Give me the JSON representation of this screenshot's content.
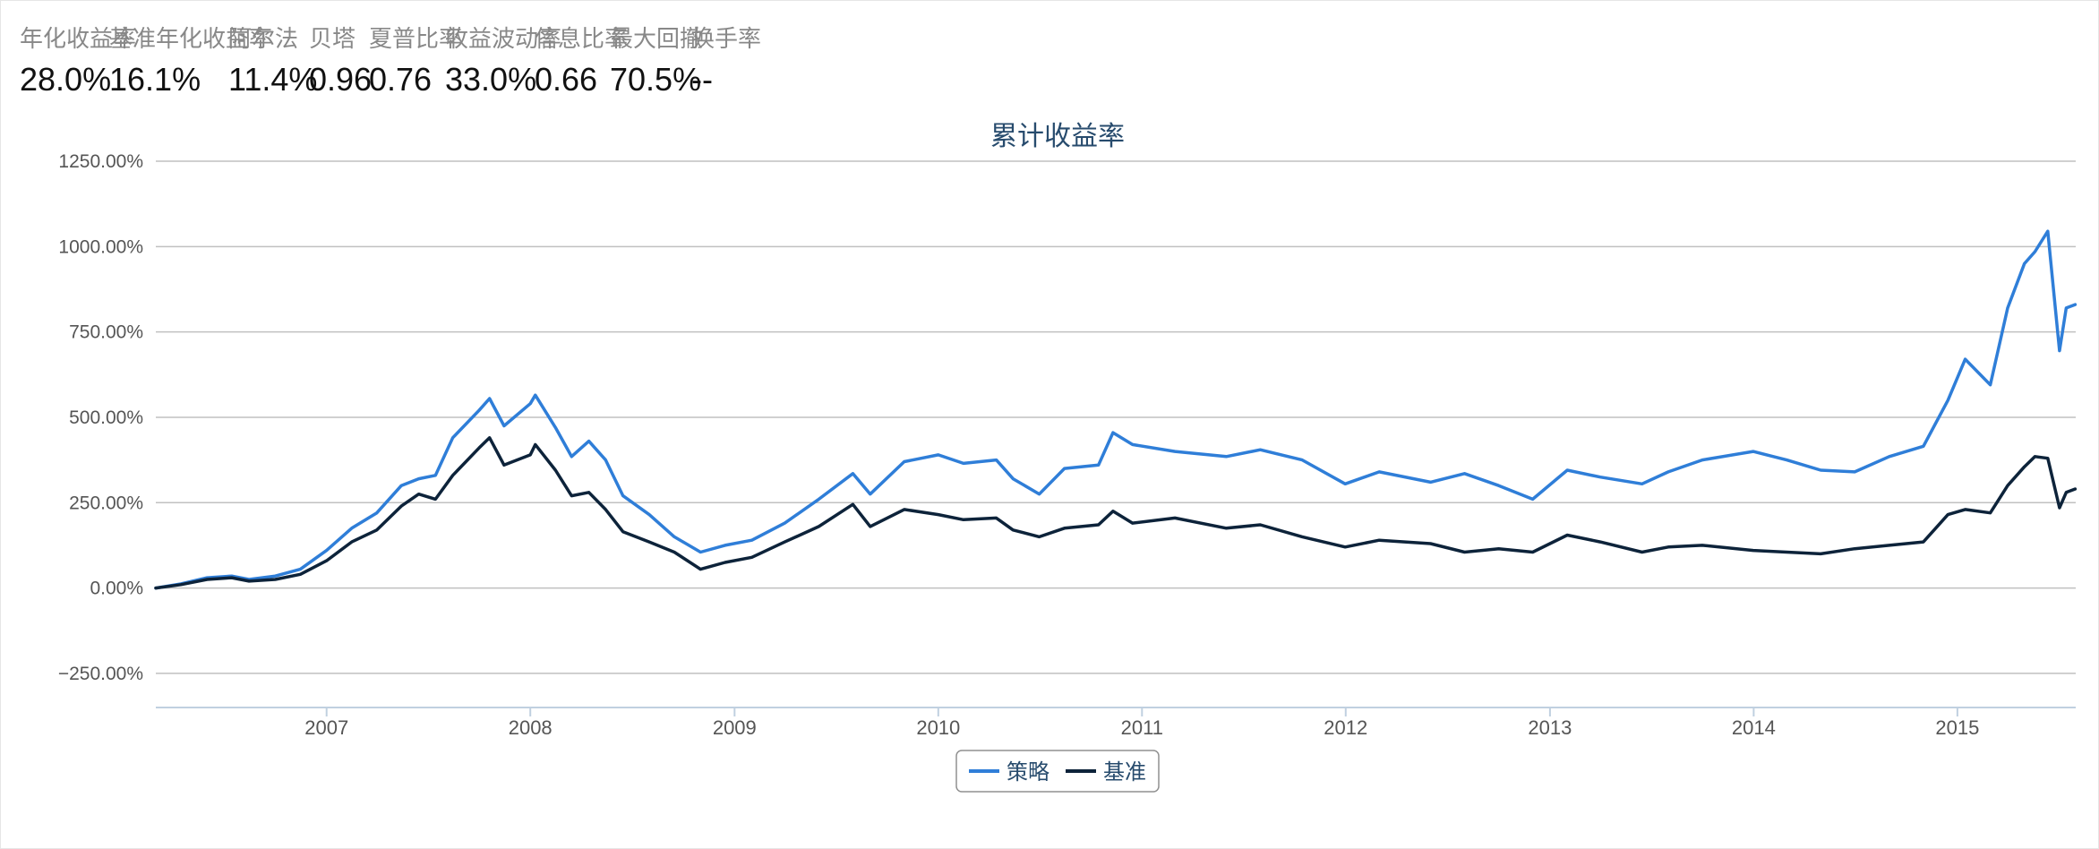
{
  "stats": [
    {
      "label": "年化收益率",
      "value": "28.0%"
    },
    {
      "label": "基准年化收益率",
      "value": "16.1%"
    },
    {
      "label": "阿尔法",
      "value": "11.4%"
    },
    {
      "label": "贝塔",
      "value": "0.96"
    },
    {
      "label": "夏普比率",
      "value": "0.76"
    },
    {
      "label": "收益波动率",
      "value": "33.0%"
    },
    {
      "label": "信息比率",
      "value": "0.66"
    },
    {
      "label": "最大回撤",
      "value": "70.5%"
    },
    {
      "label": "换手率",
      "value": "--"
    }
  ],
  "colors": {
    "strategy": "#2f7ed8",
    "benchmark": "#0d233a",
    "grid": "#c0c0c0",
    "title": "#274b6d"
  },
  "chart_data": {
    "type": "line",
    "title": "累计收益率",
    "xlabel": "",
    "ylabel": "",
    "ylim": [
      -350,
      1250
    ],
    "x_range": [
      "2006-03-01",
      "2015-08-01"
    ],
    "y_ticks": [
      -250,
      0,
      250,
      500,
      750,
      1000,
      1250
    ],
    "y_tick_labels": [
      "−250.00%",
      "0.00%",
      "250.00%",
      "500.00%",
      "750.00%",
      "1000.00%",
      "1250.00%"
    ],
    "x_ticks": [
      "2007-01-01",
      "2008-01-01",
      "2009-01-01",
      "2010-01-01",
      "2011-01-01",
      "2012-01-01",
      "2013-01-01",
      "2014-01-01",
      "2015-01-01"
    ],
    "x_tick_labels": [
      "2007",
      "2008",
      "2009",
      "2010",
      "2011",
      "2012",
      "2013",
      "2014",
      "2015"
    ],
    "grid": true,
    "legend_position": "bottom-center",
    "series": [
      {
        "name": "策略",
        "color": "#2f7ed8",
        "points": [
          [
            "2006-03-01",
            0
          ],
          [
            "2006-04-15",
            12
          ],
          [
            "2006-06-01",
            30
          ],
          [
            "2006-07-15",
            35
          ],
          [
            "2006-08-15",
            25
          ],
          [
            "2006-10-01",
            35
          ],
          [
            "2006-11-15",
            55
          ],
          [
            "2007-01-01",
            110
          ],
          [
            "2007-02-15",
            175
          ],
          [
            "2007-04-01",
            220
          ],
          [
            "2007-05-15",
            300
          ],
          [
            "2007-06-15",
            320
          ],
          [
            "2007-07-15",
            330
          ],
          [
            "2007-08-15",
            440
          ],
          [
            "2007-10-01",
            520
          ],
          [
            "2007-10-20",
            555
          ],
          [
            "2007-11-15",
            475
          ],
          [
            "2008-01-01",
            540
          ],
          [
            "2008-01-10",
            565
          ],
          [
            "2008-02-15",
            470
          ],
          [
            "2008-03-15",
            385
          ],
          [
            "2008-04-15",
            430
          ],
          [
            "2008-05-15",
            375
          ],
          [
            "2008-06-15",
            270
          ],
          [
            "2008-08-01",
            215
          ],
          [
            "2008-09-15",
            150
          ],
          [
            "2008-11-01",
            105
          ],
          [
            "2008-12-15",
            125
          ],
          [
            "2009-02-01",
            140
          ],
          [
            "2009-04-01",
            190
          ],
          [
            "2009-06-01",
            260
          ],
          [
            "2009-08-01",
            335
          ],
          [
            "2009-09-01",
            275
          ],
          [
            "2009-11-01",
            370
          ],
          [
            "2010-01-01",
            390
          ],
          [
            "2010-02-15",
            365
          ],
          [
            "2010-04-15",
            375
          ],
          [
            "2010-05-15",
            320
          ],
          [
            "2010-07-01",
            275
          ],
          [
            "2010-08-15",
            350
          ],
          [
            "2010-10-15",
            360
          ],
          [
            "2010-11-10",
            455
          ],
          [
            "2010-12-15",
            420
          ],
          [
            "2011-03-01",
            400
          ],
          [
            "2011-06-01",
            385
          ],
          [
            "2011-08-01",
            405
          ],
          [
            "2011-10-15",
            375
          ],
          [
            "2011-12-31",
            305
          ],
          [
            "2012-03-01",
            340
          ],
          [
            "2012-06-01",
            310
          ],
          [
            "2012-08-01",
            335
          ],
          [
            "2012-10-01",
            300
          ],
          [
            "2012-12-01",
            260
          ],
          [
            "2013-02-01",
            345
          ],
          [
            "2013-04-01",
            325
          ],
          [
            "2013-06-15",
            305
          ],
          [
            "2013-08-01",
            340
          ],
          [
            "2013-10-01",
            375
          ],
          [
            "2013-12-31",
            400
          ],
          [
            "2014-03-01",
            375
          ],
          [
            "2014-05-01",
            345
          ],
          [
            "2014-07-01",
            340
          ],
          [
            "2014-09-01",
            385
          ],
          [
            "2014-11-01",
            415
          ],
          [
            "2014-12-15",
            550
          ],
          [
            "2015-01-15",
            670
          ],
          [
            "2015-03-01",
            595
          ],
          [
            "2015-04-01",
            820
          ],
          [
            "2015-05-01",
            950
          ],
          [
            "2015-05-20",
            985
          ],
          [
            "2015-06-12",
            1045
          ],
          [
            "2015-07-03",
            695
          ],
          [
            "2015-07-15",
            820
          ],
          [
            "2015-07-31",
            830
          ]
        ]
      },
      {
        "name": "基准",
        "color": "#0d233a",
        "points": [
          [
            "2006-03-01",
            0
          ],
          [
            "2006-04-15",
            10
          ],
          [
            "2006-06-01",
            25
          ],
          [
            "2006-07-15",
            30
          ],
          [
            "2006-08-15",
            20
          ],
          [
            "2006-10-01",
            25
          ],
          [
            "2006-11-15",
            40
          ],
          [
            "2007-01-01",
            80
          ],
          [
            "2007-02-15",
            135
          ],
          [
            "2007-04-01",
            170
          ],
          [
            "2007-05-15",
            240
          ],
          [
            "2007-06-15",
            275
          ],
          [
            "2007-07-15",
            260
          ],
          [
            "2007-08-15",
            330
          ],
          [
            "2007-10-01",
            410
          ],
          [
            "2007-10-20",
            440
          ],
          [
            "2007-11-15",
            360
          ],
          [
            "2008-01-01",
            390
          ],
          [
            "2008-01-10",
            420
          ],
          [
            "2008-02-15",
            345
          ],
          [
            "2008-03-15",
            270
          ],
          [
            "2008-04-15",
            280
          ],
          [
            "2008-05-15",
            230
          ],
          [
            "2008-06-15",
            165
          ],
          [
            "2008-08-01",
            135
          ],
          [
            "2008-09-15",
            105
          ],
          [
            "2008-11-01",
            55
          ],
          [
            "2008-12-15",
            75
          ],
          [
            "2009-02-01",
            90
          ],
          [
            "2009-04-01",
            135
          ],
          [
            "2009-06-01",
            180
          ],
          [
            "2009-08-01",
            245
          ],
          [
            "2009-09-01",
            180
          ],
          [
            "2009-11-01",
            230
          ],
          [
            "2010-01-01",
            215
          ],
          [
            "2010-02-15",
            200
          ],
          [
            "2010-04-15",
            205
          ],
          [
            "2010-05-15",
            170
          ],
          [
            "2010-07-01",
            150
          ],
          [
            "2010-08-15",
            175
          ],
          [
            "2010-10-15",
            185
          ],
          [
            "2010-11-10",
            225
          ],
          [
            "2010-12-15",
            190
          ],
          [
            "2011-03-01",
            205
          ],
          [
            "2011-06-01",
            175
          ],
          [
            "2011-08-01",
            185
          ],
          [
            "2011-10-15",
            150
          ],
          [
            "2011-12-31",
            120
          ],
          [
            "2012-03-01",
            140
          ],
          [
            "2012-06-01",
            130
          ],
          [
            "2012-08-01",
            105
          ],
          [
            "2012-10-01",
            115
          ],
          [
            "2012-12-01",
            105
          ],
          [
            "2013-02-01",
            155
          ],
          [
            "2013-04-01",
            135
          ],
          [
            "2013-06-15",
            105
          ],
          [
            "2013-08-01",
            120
          ],
          [
            "2013-10-01",
            125
          ],
          [
            "2013-12-31",
            110
          ],
          [
            "2014-03-01",
            105
          ],
          [
            "2014-05-01",
            100
          ],
          [
            "2014-07-01",
            115
          ],
          [
            "2014-09-01",
            125
          ],
          [
            "2014-11-01",
            135
          ],
          [
            "2014-12-15",
            215
          ],
          [
            "2015-01-15",
            230
          ],
          [
            "2015-03-01",
            220
          ],
          [
            "2015-04-01",
            300
          ],
          [
            "2015-05-01",
            355
          ],
          [
            "2015-05-20",
            385
          ],
          [
            "2015-06-12",
            380
          ],
          [
            "2015-07-03",
            235
          ],
          [
            "2015-07-15",
            280
          ],
          [
            "2015-07-31",
            290
          ]
        ]
      }
    ]
  }
}
